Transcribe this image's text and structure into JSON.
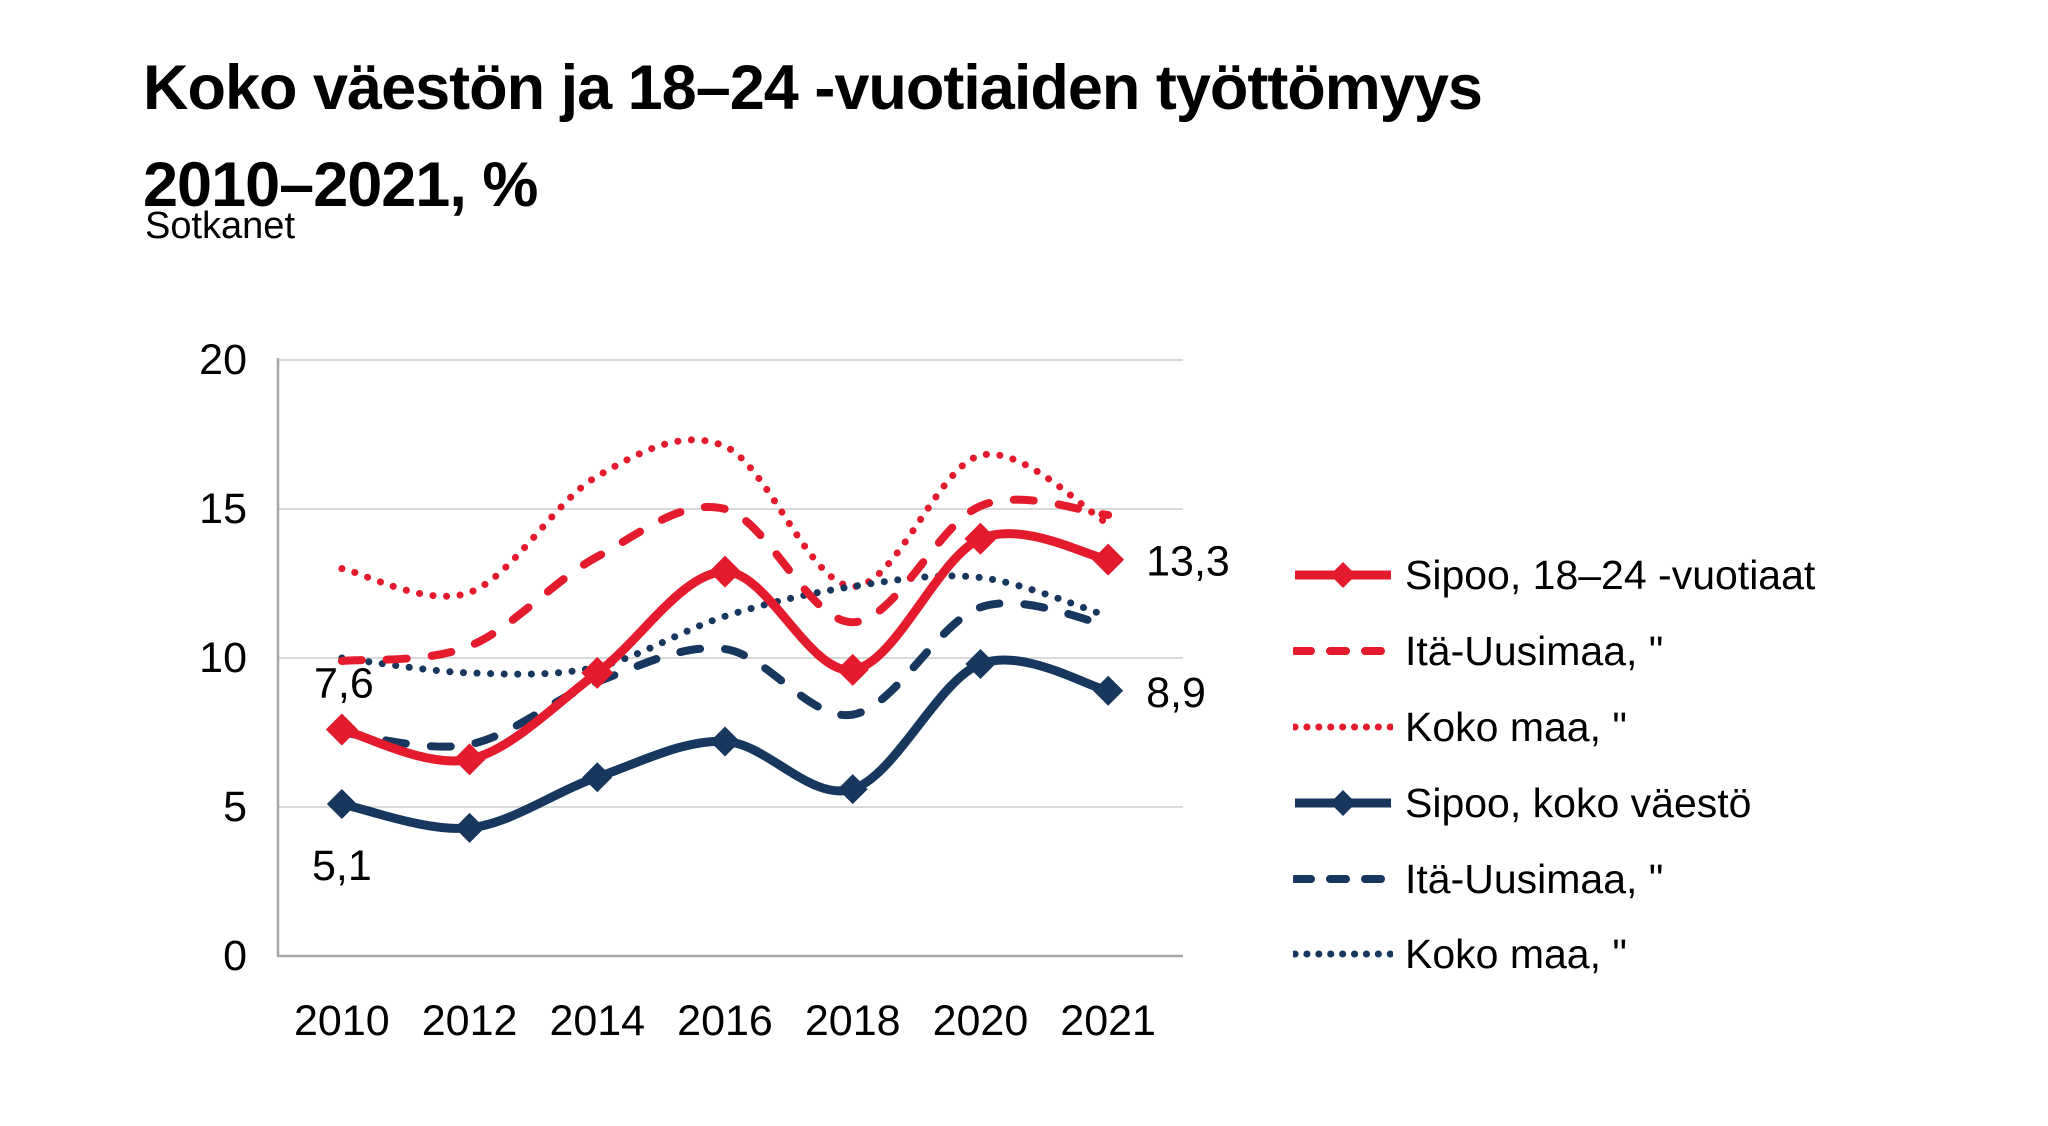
{
  "title": {
    "line1": "Koko väestön ja 18–24 -vuotiaiden työttömyys",
    "line2": "2010–2021, %"
  },
  "source": "Sotkanet",
  "colors": {
    "red": "#E41B2C",
    "navy": "#17375E",
    "gridline": "#D9D9D9",
    "axis": "#A6A6A6",
    "text": "#000000",
    "background": "#FFFFFF"
  },
  "chart_data": {
    "type": "line",
    "smoothed": true,
    "grid": "horizontal",
    "legend_position": "right",
    "categories": [
      "2010",
      "2012",
      "2014",
      "2016",
      "2018",
      "2020",
      "2021"
    ],
    "y_axis": {
      "min": 0,
      "max": 20,
      "ticks": [
        0,
        5,
        10,
        15,
        20
      ],
      "tick_labels": [
        "0",
        "5",
        "10",
        "15",
        "20"
      ]
    },
    "x_axis": {
      "tick_labels": [
        "2010",
        "2012",
        "2014",
        "2016",
        "2018",
        "2020",
        "2021"
      ]
    },
    "series": [
      {
        "name": "Sipoo, 18–24 -vuotiaat",
        "color_key": "red",
        "line_style": "solid",
        "marker": "diamond",
        "values": [
          7.6,
          6.6,
          9.5,
          12.9,
          9.6,
          14.0,
          13.3
        ]
      },
      {
        "name": "Itä-Uusimaa, \"",
        "color_key": "red",
        "line_style": "dashed",
        "marker": "none",
        "values": [
          9.9,
          10.4,
          13.4,
          15.0,
          11.2,
          15.1,
          14.8
        ]
      },
      {
        "name": "Koko maa, \"",
        "color_key": "red",
        "line_style": "dotted",
        "marker": "none",
        "values": [
          13.0,
          12.2,
          16.1,
          17.1,
          12.4,
          16.8,
          14.5
        ]
      },
      {
        "name": "Sipoo, koko väestö",
        "color_key": "navy",
        "line_style": "solid",
        "marker": "diamond",
        "values": [
          5.1,
          4.3,
          6.0,
          7.2,
          5.6,
          9.8,
          8.9
        ]
      },
      {
        "name": "Itä-Uusimaa, \"",
        "color_key": "navy",
        "line_style": "dashed",
        "marker": "none",
        "values": [
          7.5,
          7.1,
          9.2,
          10.3,
          8.1,
          11.7,
          11.1
        ]
      },
      {
        "name": "Koko maa, \"",
        "color_key": "navy",
        "line_style": "dotted",
        "marker": "none",
        "values": [
          10.0,
          9.5,
          9.7,
          11.4,
          12.4,
          12.7,
          11.4
        ]
      }
    ],
    "annotations": [
      {
        "text": "7,6",
        "series": 0,
        "point": 0,
        "position": "above"
      },
      {
        "text": "13,3",
        "series": 0,
        "point": 6,
        "position": "right"
      },
      {
        "text": "5,1",
        "series": 3,
        "point": 0,
        "position": "below"
      },
      {
        "text": "8,9",
        "series": 3,
        "point": 6,
        "position": "right"
      }
    ]
  }
}
